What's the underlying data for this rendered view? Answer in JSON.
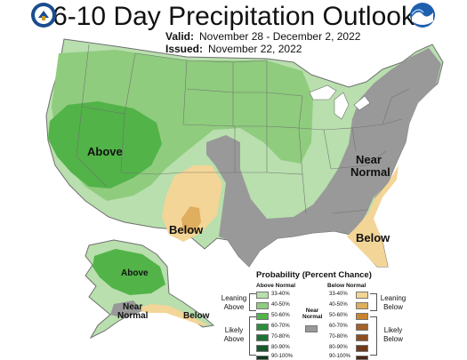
{
  "header": {
    "title": "6-10 Day Precipitation Outlook",
    "valid_label": "Valid:",
    "valid_value": "November 28 - December 2, 2022",
    "issued_label": "Issued:",
    "issued_value": "November 22, 2022"
  },
  "logos": {
    "left": "doc-seal-icon",
    "right": "noaa-logo-icon"
  },
  "map_labels": {
    "west": "Above",
    "south_plains": "Below",
    "northeast_1": "Near",
    "northeast_2": "Normal",
    "southeast": "Below",
    "alaska_above": "Above",
    "alaska_near_1": "Near",
    "alaska_near_2": "Normal",
    "alaska_below": "Below"
  },
  "colors": {
    "above_33_40": "#b8dfad",
    "above_40_50": "#8fcc7e",
    "above_50_60": "#52b348",
    "above_60_70": "#2e8f3a",
    "above_70_80": "#1e7236",
    "above_80_90": "#17592b",
    "above_90_100": "#0d3a1b",
    "near_normal": "#999999",
    "below_33_40": "#f3d597",
    "below_40_50": "#dfae5f",
    "below_50_60": "#c98432",
    "below_60_70": "#a4612b",
    "below_70_80": "#8a4e22",
    "below_80_90": "#6e3a1a",
    "below_90_100": "#4a2513"
  },
  "legend": {
    "title": "Probability (Percent Chance)",
    "above_header": "Above Normal",
    "below_header": "Below Normal",
    "near_header_1": "Near",
    "near_header_2": "Normal",
    "leaning_above_1": "Leaning",
    "leaning_above_2": "Above",
    "likely_above_1": "Likely",
    "likely_above_2": "Above",
    "leaning_below_1": "Leaning",
    "leaning_below_2": "Below",
    "likely_below_1": "Likely",
    "likely_below_2": "Below",
    "ranges": [
      "33-40%",
      "40-50%",
      "50-60%",
      "60-70%",
      "70-80%",
      "80-90%",
      "90-100%"
    ]
  }
}
